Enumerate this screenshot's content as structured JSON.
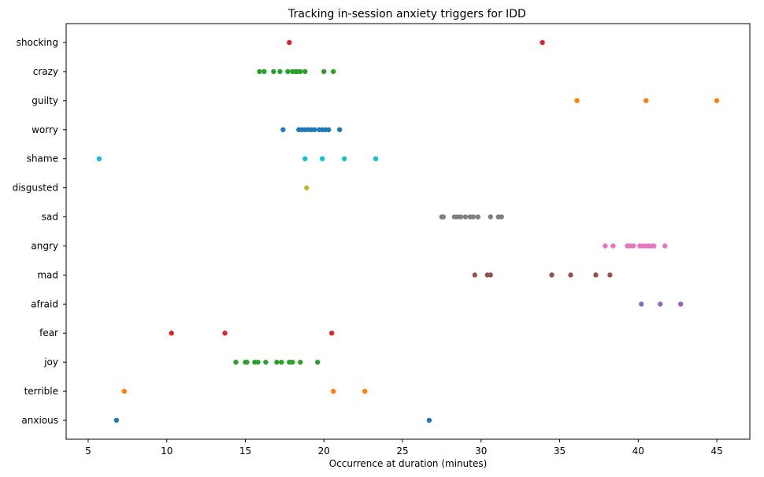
{
  "chart_data": {
    "type": "scatter",
    "title": "Tracking in-session anxiety triggers for IDD",
    "xlabel": "Occurrence at duration (minutes)",
    "ylabel": "",
    "xlim": [
      3.6,
      47.1
    ],
    "xticks": [
      5,
      10,
      15,
      20,
      25,
      30,
      35,
      40,
      45
    ],
    "grid": false,
    "categories": [
      "anxious",
      "terrible",
      "joy",
      "fear",
      "afraid",
      "mad",
      "angry",
      "sad",
      "disgusted",
      "shame",
      "worry",
      "guilty",
      "crazy",
      "shocking"
    ],
    "series": [
      {
        "name": "anxious",
        "color": "#1f77b4",
        "x": [
          6.8,
          26.7
        ]
      },
      {
        "name": "terrible",
        "color": "#ff7f0e",
        "x": [
          7.3,
          20.6,
          22.6
        ]
      },
      {
        "name": "joy",
        "color": "#2ca02c",
        "x": [
          14.4,
          15.0,
          15.1,
          15.6,
          15.8,
          16.3,
          17.0,
          17.3,
          17.8,
          18.0,
          18.5,
          19.6
        ]
      },
      {
        "name": "fear",
        "color": "#d62728",
        "x": [
          10.3,
          13.7,
          20.5
        ]
      },
      {
        "name": "afraid",
        "color": "#9467bd",
        "x": [
          40.2,
          41.4,
          42.7
        ]
      },
      {
        "name": "mad",
        "color": "#8c564b",
        "x": [
          29.6,
          30.4,
          30.6,
          34.5,
          35.7,
          37.3,
          38.2
        ]
      },
      {
        "name": "angry",
        "color": "#e377c2",
        "x": [
          37.9,
          38.4,
          39.3,
          39.5,
          39.7,
          40.1,
          40.3,
          40.5,
          40.7,
          40.9,
          41.0,
          41.7
        ]
      },
      {
        "name": "sad",
        "color": "#7f7f7f",
        "x": [
          27.5,
          27.6,
          28.3,
          28.5,
          28.7,
          29.0,
          29.3,
          29.5,
          29.8,
          30.6,
          31.1,
          31.3
        ]
      },
      {
        "name": "disgusted",
        "color": "#bcbd22",
        "x": [
          18.9
        ]
      },
      {
        "name": "shame",
        "color": "#17becf",
        "x": [
          5.7,
          18.8,
          19.9,
          21.3,
          23.3
        ]
      },
      {
        "name": "worry",
        "color": "#1f77b4",
        "x": [
          17.4,
          18.4,
          18.6,
          18.8,
          19.0,
          19.2,
          19.4,
          19.7,
          19.9,
          20.1,
          20.3,
          21.0
        ]
      },
      {
        "name": "guilty",
        "color": "#ff7f0e",
        "x": [
          36.1,
          40.5,
          45.0
        ]
      },
      {
        "name": "crazy",
        "color": "#2ca02c",
        "x": [
          15.9,
          16.2,
          16.8,
          17.2,
          17.7,
          18.0,
          18.2,
          18.3,
          18.5,
          18.8,
          20.0,
          20.6
        ]
      },
      {
        "name": "shocking",
        "color": "#d62728",
        "x": [
          17.8,
          33.9
        ]
      }
    ]
  }
}
